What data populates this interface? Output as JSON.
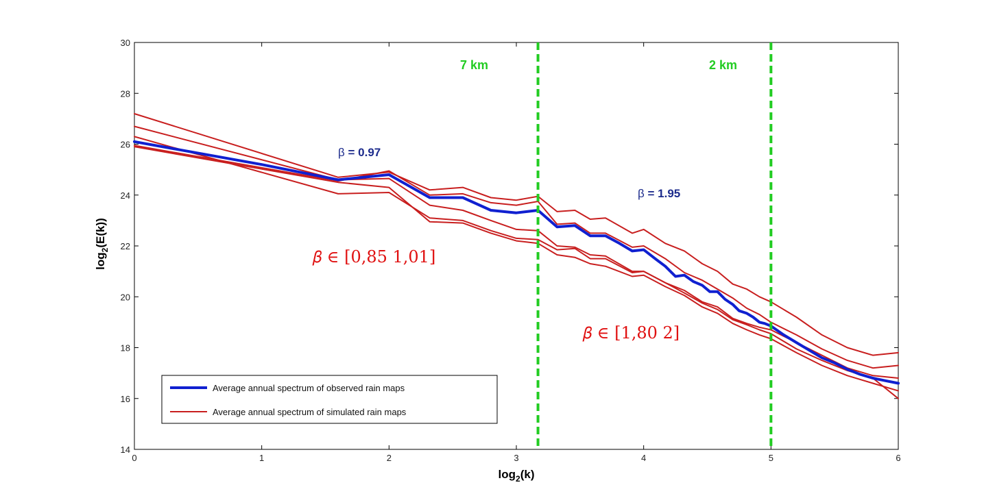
{
  "chart_data": {
    "type": "line",
    "title": "",
    "xlabel_main": "log",
    "xlabel_sub": "2",
    "xlabel_tail": "(k)",
    "ylabel_main": "log",
    "ylabel_sub": "2",
    "ylabel_tail": "(E(k))",
    "xlim": [
      0,
      6
    ],
    "ylim": [
      14,
      30
    ],
    "xticks": [
      "0",
      "1",
      "2",
      "3",
      "4",
      "5",
      "6"
    ],
    "yticks": [
      "14",
      "16",
      "18",
      "20",
      "22",
      "24",
      "26",
      "28",
      "30"
    ],
    "grid": false,
    "legend_position": "bottom-left",
    "legend": [
      {
        "label": "Average annual spectrum  of observed rain maps",
        "color": "#1020d0"
      },
      {
        "label": "Average  annual spectrum of simulated rain maps",
        "color": "#c81e1e"
      }
    ],
    "vlines": [
      {
        "x": 3.17,
        "label": "7 km",
        "color": "#22cc22"
      },
      {
        "x": 5.0,
        "label": "2 km",
        "color": "#22cc22"
      }
    ],
    "annotations": {
      "beta_low_obs": {
        "prefix": "β",
        "text": " = 0.97",
        "x": 1.6,
        "y": 25.6
      },
      "beta_high_obs": {
        "prefix": "β",
        "text": " = 1.95",
        "x": 3.95,
        "y": 23.9
      },
      "beta_low_sim": {
        "text": "𝛽  ∈ [0,85 1,01]",
        "x": 1.4,
        "y": 21.7
      },
      "beta_high_sim": {
        "text": "𝛽  ∈ [1,80 2]",
        "x": 3.5,
        "y": 18.1
      }
    },
    "series": [
      {
        "name": "Average annual spectrum  of observed rain maps",
        "color": "#1020d0",
        "width": 4,
        "x": [
          0,
          1.0,
          1.6,
          2.0,
          2.32,
          2.58,
          2.8,
          3.0,
          3.17,
          3.32,
          3.46,
          3.58,
          3.7,
          3.81,
          3.91,
          4.0,
          4.09,
          4.17,
          4.25,
          4.32,
          4.39,
          4.46,
          4.52,
          4.58,
          4.64,
          4.7,
          4.75,
          4.81,
          4.86,
          4.91,
          4.95,
          5.0,
          5.1,
          5.2,
          5.3,
          5.4,
          5.5,
          5.6,
          5.7,
          5.8,
          5.9,
          6.0
        ],
        "y": [
          26.1,
          25.2,
          24.6,
          24.8,
          23.9,
          23.9,
          23.4,
          23.3,
          23.4,
          22.75,
          22.8,
          22.4,
          22.4,
          22.1,
          21.8,
          21.85,
          21.5,
          21.2,
          20.8,
          20.85,
          20.6,
          20.45,
          20.2,
          20.2,
          19.9,
          19.7,
          19.45,
          19.35,
          19.2,
          19.0,
          18.95,
          18.85,
          18.5,
          18.2,
          17.9,
          17.6,
          17.4,
          17.15,
          16.95,
          16.8,
          16.7,
          16.6
        ]
      },
      {
        "name": "",
        "color": "#c81e1e",
        "width": 2,
        "x": [
          0,
          1.6,
          2.0,
          2.32,
          2.58,
          2.8,
          3.0,
          3.17,
          3.32,
          3.46,
          3.58,
          3.7,
          3.91,
          4.0,
          4.17,
          4.32,
          4.46,
          4.58,
          4.7,
          4.81,
          4.91,
          5.0,
          5.2,
          5.4,
          5.6,
          5.8,
          6.0
        ],
        "y": [
          27.2,
          24.7,
          24.9,
          24.2,
          24.3,
          23.9,
          23.8,
          23.95,
          23.35,
          23.4,
          23.05,
          23.1,
          22.5,
          22.65,
          22.1,
          21.8,
          21.3,
          21.0,
          20.5,
          20.3,
          20.0,
          19.8,
          19.2,
          18.5,
          18.0,
          17.7,
          17.8
        ]
      },
      {
        "name": "",
        "color": "#c81e1e",
        "width": 2,
        "x": [
          0,
          1.6,
          2.0,
          2.32,
          2.58,
          2.8,
          3.0,
          3.17,
          3.32,
          3.46,
          3.58,
          3.7,
          3.91,
          4.0,
          4.17,
          4.32,
          4.46,
          4.58,
          4.7,
          4.81,
          4.91,
          5.0,
          5.2,
          5.4,
          5.6,
          5.8,
          6.0
        ],
        "y": [
          26.7,
          24.6,
          24.65,
          23.6,
          23.4,
          23.0,
          22.65,
          22.6,
          22.0,
          21.95,
          21.65,
          21.6,
          21.0,
          21.0,
          20.55,
          20.15,
          19.75,
          19.5,
          19.1,
          18.9,
          18.7,
          18.55,
          17.95,
          17.5,
          17.1,
          16.8,
          16.0
        ]
      },
      {
        "name": "",
        "color": "#c81e1e",
        "width": 2,
        "x": [
          0,
          1.6,
          2.0,
          2.32,
          2.58,
          2.8,
          3.0,
          3.17,
          3.32,
          3.46,
          3.58,
          3.7,
          3.91,
          4.0,
          4.17,
          4.32,
          4.46,
          4.58,
          4.7,
          4.81,
          4.91,
          5.0,
          5.2,
          5.4,
          5.6,
          5.8,
          6.0
        ],
        "y": [
          26.3,
          24.05,
          24.1,
          23.1,
          23.0,
          22.6,
          22.3,
          22.25,
          21.85,
          21.9,
          21.5,
          21.5,
          20.95,
          21.0,
          20.55,
          20.25,
          19.8,
          19.6,
          19.15,
          18.95,
          18.8,
          18.7,
          18.2,
          17.7,
          17.2,
          16.9,
          16.8
        ]
      },
      {
        "name": "",
        "color": "#c81e1e",
        "width": 2,
        "x": [
          0,
          1.6,
          2.0,
          2.32,
          2.58,
          2.8,
          3.0,
          3.17,
          3.32,
          3.46,
          3.58,
          3.7,
          3.91,
          4.0,
          4.17,
          4.32,
          4.46,
          4.58,
          4.7,
          4.81,
          4.91,
          5.0,
          5.2,
          5.4,
          5.6,
          5.8,
          6.0
        ],
        "y": [
          25.9,
          24.5,
          24.3,
          22.95,
          22.9,
          22.5,
          22.2,
          22.1,
          21.65,
          21.55,
          21.3,
          21.2,
          20.8,
          20.85,
          20.4,
          20.05,
          19.6,
          19.35,
          18.95,
          18.7,
          18.5,
          18.35,
          17.8,
          17.3,
          16.9,
          16.6,
          16.3
        ]
      },
      {
        "name": "",
        "color": "#c81e1e",
        "width": 2,
        "x": [
          0,
          1.6,
          2.0,
          2.32,
          2.58,
          2.8,
          3.0,
          3.17,
          3.32,
          3.46,
          3.58,
          3.7,
          3.91,
          4.0,
          4.17,
          4.32,
          4.46,
          4.58,
          4.7,
          4.81,
          4.91,
          5.0,
          5.2,
          5.4,
          5.6,
          5.8,
          6.0
        ],
        "y": [
          25.95,
          24.55,
          24.95,
          24.0,
          24.05,
          23.7,
          23.6,
          23.75,
          22.85,
          22.9,
          22.5,
          22.5,
          21.95,
          22.0,
          21.5,
          20.95,
          20.65,
          20.3,
          19.95,
          19.55,
          19.3,
          19.0,
          18.5,
          17.95,
          17.5,
          17.2,
          17.3
        ]
      }
    ]
  }
}
